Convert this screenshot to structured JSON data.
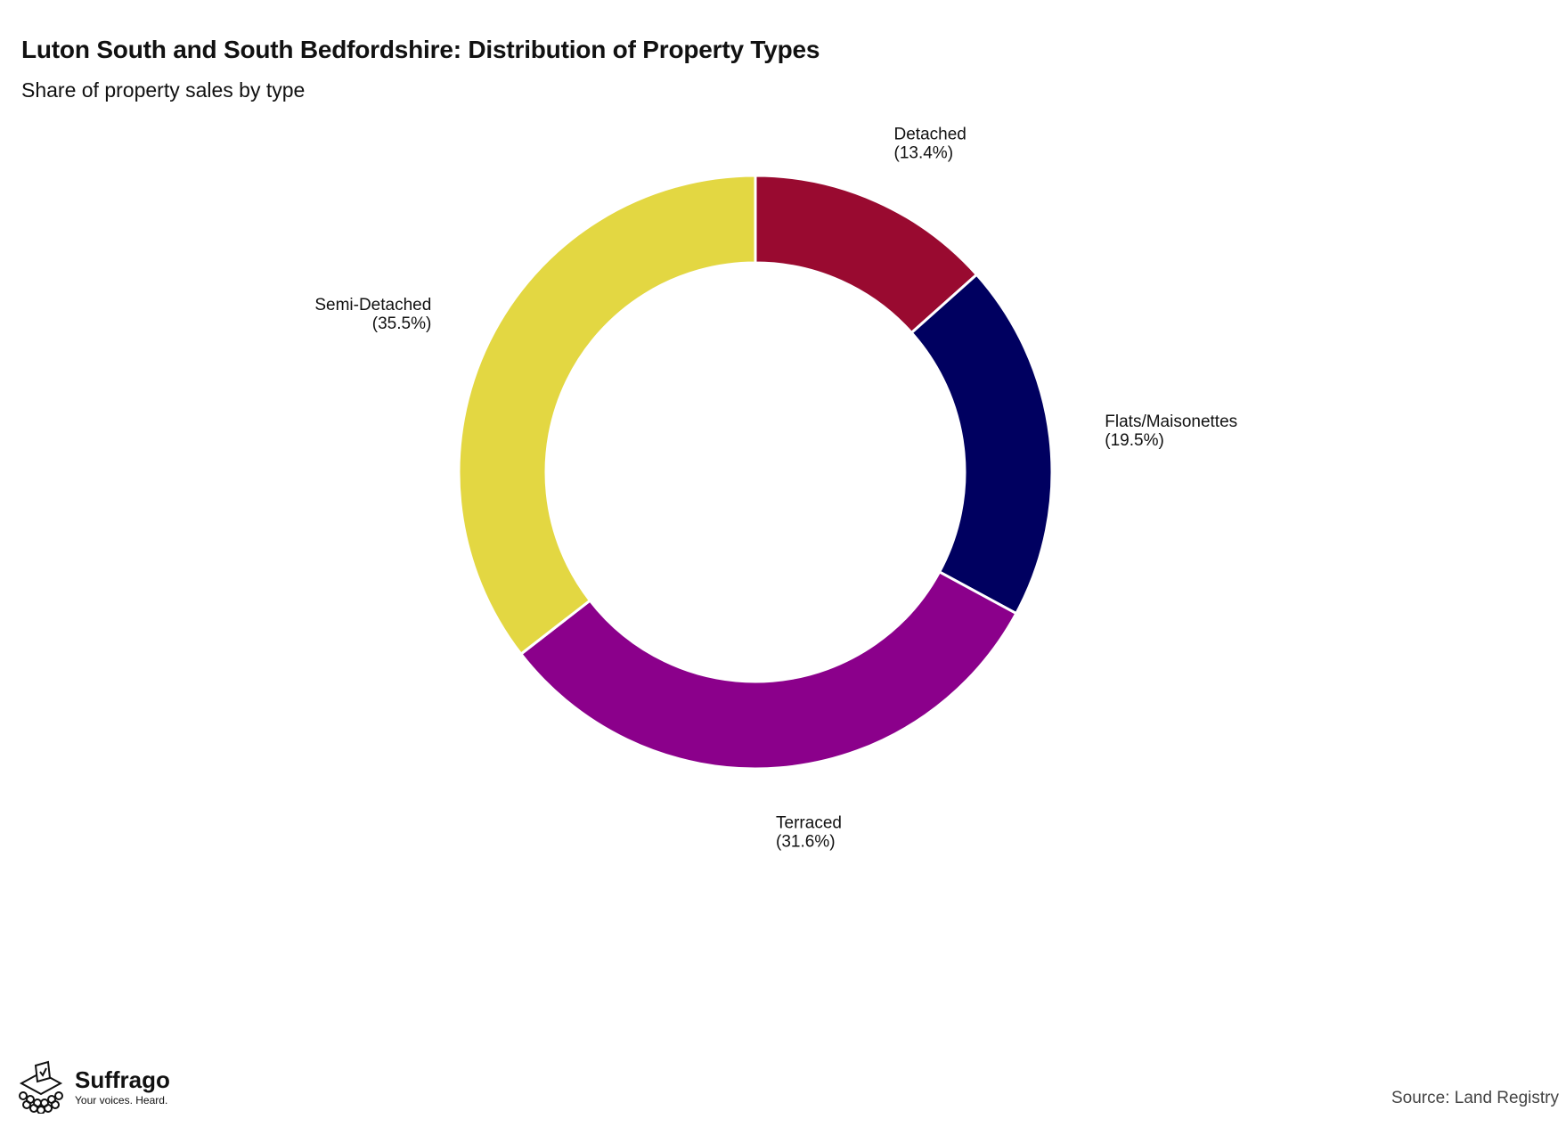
{
  "header": {
    "title": "Luton South and South Bedfordshire: Distribution of Property Types",
    "subtitle": "Share of property sales by type"
  },
  "chart_data": {
    "type": "pie",
    "subtype": "donut",
    "title": "Luton South and South Bedfordshire: Distribution of Property Types",
    "subtitle": "Share of property sales by type",
    "slices": [
      {
        "label": "Detached",
        "value": 13.4,
        "pct_label": "(13.4%)",
        "color": "#990a30"
      },
      {
        "label": "Flats/Maisonettes",
        "value": 19.5,
        "pct_label": "(19.5%)",
        "color": "#000060"
      },
      {
        "label": "Terraced",
        "value": 31.6,
        "pct_label": "(31.6%)",
        "color": "#8b008b"
      },
      {
        "label": "Semi-Detached",
        "value": 35.5,
        "pct_label": "(35.5%)",
        "color": "#e3d742"
      }
    ],
    "legend": "none"
  },
  "footer": {
    "brand_name": "Suffrago",
    "brand_tagline": "Your voices. Heard.",
    "source": "Source: Land Registry"
  },
  "icons": {
    "logo": "ballot-box-icon"
  }
}
